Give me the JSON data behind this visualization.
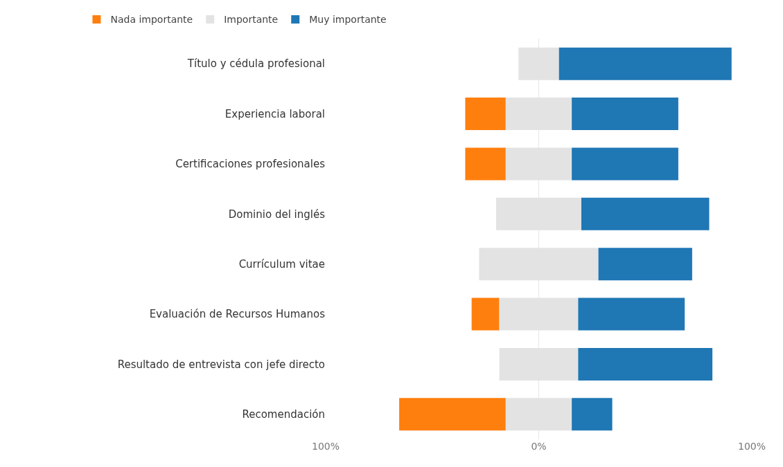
{
  "chart_data": {
    "type": "bar",
    "orientation": "horizontal",
    "categories": [
      "Título y cédula profesional",
      "Experiencia laboral",
      "Certificaciones profesionales",
      "Dominio del inglés",
      "Currículum vitae",
      "Evaluación de Recursos Humanos",
      "Resultado de entrevista con jefe directo",
      "Recomendación"
    ],
    "series": [
      {
        "name": "Nada importante",
        "color": "#ff7f0e",
        "values": [
          null,
          19,
          19,
          null,
          null,
          13,
          null,
          50
        ],
        "base": [
          null,
          -34.5,
          -34.5,
          null,
          null,
          -31.5,
          null,
          -65.5
        ]
      },
      {
        "name": "Importante",
        "color": "#e3e3e3",
        "values": [
          19,
          31,
          31,
          40,
          56,
          37,
          37,
          31
        ],
        "base": [
          -9.5,
          -15.5,
          -15.5,
          -20,
          -28,
          -18.5,
          -18.5,
          -15.5
        ]
      },
      {
        "name": "Muy importante",
        "color": "#1f77b4",
        "values": [
          81,
          50,
          50,
          60,
          44,
          50,
          63,
          19
        ],
        "base": [
          9.5,
          15.5,
          15.5,
          20,
          28,
          18.5,
          18.5,
          15.5
        ]
      }
    ],
    "xlim": [
      -100,
      100
    ],
    "xticks": [
      {
        "value": -100,
        "label": "100%"
      },
      {
        "value": 0,
        "label": "0%"
      },
      {
        "value": 100,
        "label": "100%"
      }
    ],
    "grid": "x",
    "legend": "top left"
  }
}
